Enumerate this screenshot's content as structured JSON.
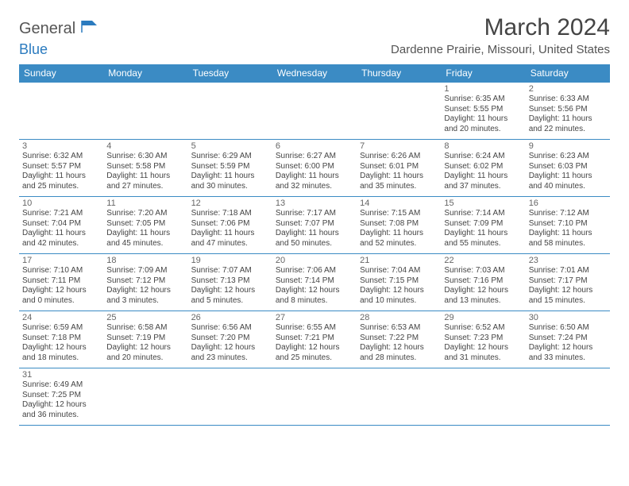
{
  "logo": {
    "general": "General",
    "blue": "Blue"
  },
  "title": "March 2024",
  "location": "Dardenne Prairie, Missouri, United States",
  "colors": {
    "header_bg": "#3b8bc4",
    "row_border": "#3b8bc4",
    "text": "#333333"
  },
  "day_headers": [
    "Sunday",
    "Monday",
    "Tuesday",
    "Wednesday",
    "Thursday",
    "Friday",
    "Saturday"
  ],
  "weeks": [
    [
      null,
      null,
      null,
      null,
      null,
      {
        "n": "1",
        "sr": "Sunrise: 6:35 AM",
        "ss": "Sunset: 5:55 PM",
        "dl1": "Daylight: 11 hours",
        "dl2": "and 20 minutes."
      },
      {
        "n": "2",
        "sr": "Sunrise: 6:33 AM",
        "ss": "Sunset: 5:56 PM",
        "dl1": "Daylight: 11 hours",
        "dl2": "and 22 minutes."
      }
    ],
    [
      {
        "n": "3",
        "sr": "Sunrise: 6:32 AM",
        "ss": "Sunset: 5:57 PM",
        "dl1": "Daylight: 11 hours",
        "dl2": "and 25 minutes."
      },
      {
        "n": "4",
        "sr": "Sunrise: 6:30 AM",
        "ss": "Sunset: 5:58 PM",
        "dl1": "Daylight: 11 hours",
        "dl2": "and 27 minutes."
      },
      {
        "n": "5",
        "sr": "Sunrise: 6:29 AM",
        "ss": "Sunset: 5:59 PM",
        "dl1": "Daylight: 11 hours",
        "dl2": "and 30 minutes."
      },
      {
        "n": "6",
        "sr": "Sunrise: 6:27 AM",
        "ss": "Sunset: 6:00 PM",
        "dl1": "Daylight: 11 hours",
        "dl2": "and 32 minutes."
      },
      {
        "n": "7",
        "sr": "Sunrise: 6:26 AM",
        "ss": "Sunset: 6:01 PM",
        "dl1": "Daylight: 11 hours",
        "dl2": "and 35 minutes."
      },
      {
        "n": "8",
        "sr": "Sunrise: 6:24 AM",
        "ss": "Sunset: 6:02 PM",
        "dl1": "Daylight: 11 hours",
        "dl2": "and 37 minutes."
      },
      {
        "n": "9",
        "sr": "Sunrise: 6:23 AM",
        "ss": "Sunset: 6:03 PM",
        "dl1": "Daylight: 11 hours",
        "dl2": "and 40 minutes."
      }
    ],
    [
      {
        "n": "10",
        "sr": "Sunrise: 7:21 AM",
        "ss": "Sunset: 7:04 PM",
        "dl1": "Daylight: 11 hours",
        "dl2": "and 42 minutes."
      },
      {
        "n": "11",
        "sr": "Sunrise: 7:20 AM",
        "ss": "Sunset: 7:05 PM",
        "dl1": "Daylight: 11 hours",
        "dl2": "and 45 minutes."
      },
      {
        "n": "12",
        "sr": "Sunrise: 7:18 AM",
        "ss": "Sunset: 7:06 PM",
        "dl1": "Daylight: 11 hours",
        "dl2": "and 47 minutes."
      },
      {
        "n": "13",
        "sr": "Sunrise: 7:17 AM",
        "ss": "Sunset: 7:07 PM",
        "dl1": "Daylight: 11 hours",
        "dl2": "and 50 minutes."
      },
      {
        "n": "14",
        "sr": "Sunrise: 7:15 AM",
        "ss": "Sunset: 7:08 PM",
        "dl1": "Daylight: 11 hours",
        "dl2": "and 52 minutes."
      },
      {
        "n": "15",
        "sr": "Sunrise: 7:14 AM",
        "ss": "Sunset: 7:09 PM",
        "dl1": "Daylight: 11 hours",
        "dl2": "and 55 minutes."
      },
      {
        "n": "16",
        "sr": "Sunrise: 7:12 AM",
        "ss": "Sunset: 7:10 PM",
        "dl1": "Daylight: 11 hours",
        "dl2": "and 58 minutes."
      }
    ],
    [
      {
        "n": "17",
        "sr": "Sunrise: 7:10 AM",
        "ss": "Sunset: 7:11 PM",
        "dl1": "Daylight: 12 hours",
        "dl2": "and 0 minutes."
      },
      {
        "n": "18",
        "sr": "Sunrise: 7:09 AM",
        "ss": "Sunset: 7:12 PM",
        "dl1": "Daylight: 12 hours",
        "dl2": "and 3 minutes."
      },
      {
        "n": "19",
        "sr": "Sunrise: 7:07 AM",
        "ss": "Sunset: 7:13 PM",
        "dl1": "Daylight: 12 hours",
        "dl2": "and 5 minutes."
      },
      {
        "n": "20",
        "sr": "Sunrise: 7:06 AM",
        "ss": "Sunset: 7:14 PM",
        "dl1": "Daylight: 12 hours",
        "dl2": "and 8 minutes."
      },
      {
        "n": "21",
        "sr": "Sunrise: 7:04 AM",
        "ss": "Sunset: 7:15 PM",
        "dl1": "Daylight: 12 hours",
        "dl2": "and 10 minutes."
      },
      {
        "n": "22",
        "sr": "Sunrise: 7:03 AM",
        "ss": "Sunset: 7:16 PM",
        "dl1": "Daylight: 12 hours",
        "dl2": "and 13 minutes."
      },
      {
        "n": "23",
        "sr": "Sunrise: 7:01 AM",
        "ss": "Sunset: 7:17 PM",
        "dl1": "Daylight: 12 hours",
        "dl2": "and 15 minutes."
      }
    ],
    [
      {
        "n": "24",
        "sr": "Sunrise: 6:59 AM",
        "ss": "Sunset: 7:18 PM",
        "dl1": "Daylight: 12 hours",
        "dl2": "and 18 minutes."
      },
      {
        "n": "25",
        "sr": "Sunrise: 6:58 AM",
        "ss": "Sunset: 7:19 PM",
        "dl1": "Daylight: 12 hours",
        "dl2": "and 20 minutes."
      },
      {
        "n": "26",
        "sr": "Sunrise: 6:56 AM",
        "ss": "Sunset: 7:20 PM",
        "dl1": "Daylight: 12 hours",
        "dl2": "and 23 minutes."
      },
      {
        "n": "27",
        "sr": "Sunrise: 6:55 AM",
        "ss": "Sunset: 7:21 PM",
        "dl1": "Daylight: 12 hours",
        "dl2": "and 25 minutes."
      },
      {
        "n": "28",
        "sr": "Sunrise: 6:53 AM",
        "ss": "Sunset: 7:22 PM",
        "dl1": "Daylight: 12 hours",
        "dl2": "and 28 minutes."
      },
      {
        "n": "29",
        "sr": "Sunrise: 6:52 AM",
        "ss": "Sunset: 7:23 PM",
        "dl1": "Daylight: 12 hours",
        "dl2": "and 31 minutes."
      },
      {
        "n": "30",
        "sr": "Sunrise: 6:50 AM",
        "ss": "Sunset: 7:24 PM",
        "dl1": "Daylight: 12 hours",
        "dl2": "and 33 minutes."
      }
    ],
    [
      {
        "n": "31",
        "sr": "Sunrise: 6:49 AM",
        "ss": "Sunset: 7:25 PM",
        "dl1": "Daylight: 12 hours",
        "dl2": "and 36 minutes."
      },
      null,
      null,
      null,
      null,
      null,
      null
    ]
  ]
}
